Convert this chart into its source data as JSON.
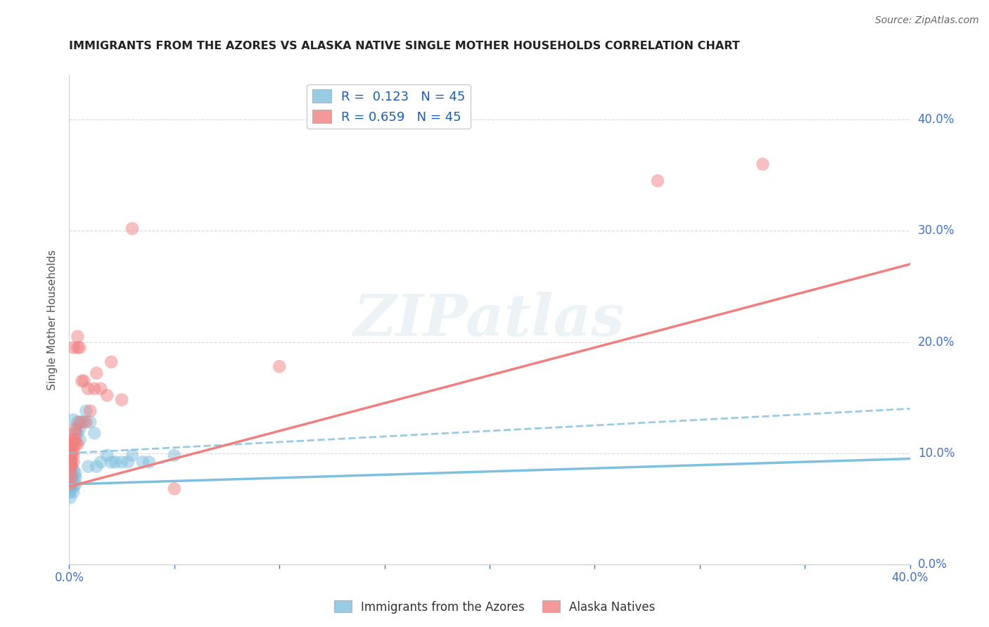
{
  "title": "IMMIGRANTS FROM THE AZORES VS ALASKA NATIVE SINGLE MOTHER HOUSEHOLDS CORRELATION CHART",
  "source": "Source: ZipAtlas.com",
  "ylabel": "Single Mother Households",
  "xlim": [
    0.0,
    0.4
  ],
  "ylim": [
    0.0,
    0.44
  ],
  "xtick_vals": [
    0.0,
    0.05,
    0.1,
    0.15,
    0.2,
    0.25,
    0.3,
    0.35,
    0.4
  ],
  "xtick_labels": [
    "0.0%",
    "",
    "",
    "",
    "",
    "",
    "",
    "",
    "40.0%"
  ],
  "ytick_vals": [
    0.0,
    0.1,
    0.2,
    0.3,
    0.4
  ],
  "ytick_labels": [
    "0.0%",
    "10.0%",
    "20.0%",
    "30.0%",
    "40.0%"
  ],
  "R_blue": 0.123,
  "R_pink": 0.659,
  "N": 45,
  "blue_color": "#7fbfdf",
  "pink_color": "#f08080",
  "blue_scatter": [
    [
      0.0005,
      0.06
    ],
    [
      0.0005,
      0.07
    ],
    [
      0.0005,
      0.075
    ],
    [
      0.0005,
      0.08
    ],
    [
      0.0005,
      0.085
    ],
    [
      0.0005,
      0.09
    ],
    [
      0.0005,
      0.095
    ],
    [
      0.0005,
      0.065
    ],
    [
      0.001,
      0.068
    ],
    [
      0.001,
      0.072
    ],
    [
      0.001,
      0.078
    ],
    [
      0.001,
      0.082
    ],
    [
      0.001,
      0.088
    ],
    [
      0.001,
      0.092
    ],
    [
      0.002,
      0.065
    ],
    [
      0.002,
      0.07
    ],
    [
      0.002,
      0.075
    ],
    [
      0.002,
      0.08
    ],
    [
      0.002,
      0.085
    ],
    [
      0.002,
      0.13
    ],
    [
      0.003,
      0.072
    ],
    [
      0.003,
      0.078
    ],
    [
      0.003,
      0.082
    ],
    [
      0.003,
      0.12
    ],
    [
      0.004,
      0.118
    ],
    [
      0.004,
      0.128
    ],
    [
      0.005,
      0.112
    ],
    [
      0.005,
      0.122
    ],
    [
      0.006,
      0.128
    ],
    [
      0.007,
      0.128
    ],
    [
      0.008,
      0.138
    ],
    [
      0.009,
      0.088
    ],
    [
      0.01,
      0.128
    ],
    [
      0.012,
      0.118
    ],
    [
      0.013,
      0.088
    ],
    [
      0.015,
      0.092
    ],
    [
      0.018,
      0.098
    ],
    [
      0.02,
      0.092
    ],
    [
      0.022,
      0.092
    ],
    [
      0.025,
      0.092
    ],
    [
      0.028,
      0.092
    ],
    [
      0.03,
      0.098
    ],
    [
      0.035,
      0.092
    ],
    [
      0.038,
      0.092
    ],
    [
      0.05,
      0.098
    ]
  ],
  "pink_scatter": [
    [
      0.0005,
      0.072
    ],
    [
      0.0005,
      0.082
    ],
    [
      0.0005,
      0.088
    ],
    [
      0.0005,
      0.092
    ],
    [
      0.0005,
      0.098
    ],
    [
      0.0005,
      0.102
    ],
    [
      0.0005,
      0.108
    ],
    [
      0.001,
      0.078
    ],
    [
      0.001,
      0.088
    ],
    [
      0.001,
      0.092
    ],
    [
      0.001,
      0.098
    ],
    [
      0.001,
      0.102
    ],
    [
      0.001,
      0.108
    ],
    [
      0.001,
      0.112
    ],
    [
      0.002,
      0.092
    ],
    [
      0.002,
      0.098
    ],
    [
      0.002,
      0.102
    ],
    [
      0.002,
      0.108
    ],
    [
      0.002,
      0.112
    ],
    [
      0.002,
      0.195
    ],
    [
      0.003,
      0.108
    ],
    [
      0.003,
      0.112
    ],
    [
      0.003,
      0.118
    ],
    [
      0.003,
      0.122
    ],
    [
      0.004,
      0.108
    ],
    [
      0.004,
      0.195
    ],
    [
      0.004,
      0.205
    ],
    [
      0.005,
      0.128
    ],
    [
      0.005,
      0.195
    ],
    [
      0.006,
      0.165
    ],
    [
      0.007,
      0.165
    ],
    [
      0.008,
      0.128
    ],
    [
      0.009,
      0.158
    ],
    [
      0.01,
      0.138
    ],
    [
      0.012,
      0.158
    ],
    [
      0.013,
      0.172
    ],
    [
      0.015,
      0.158
    ],
    [
      0.018,
      0.152
    ],
    [
      0.02,
      0.182
    ],
    [
      0.025,
      0.148
    ],
    [
      0.03,
      0.302
    ],
    [
      0.05,
      0.068
    ],
    [
      0.1,
      0.178
    ],
    [
      0.28,
      0.345
    ],
    [
      0.33,
      0.36
    ]
  ],
  "watermark": "ZIPatlas",
  "legend_blue_label": "Immigrants from the Azores",
  "legend_pink_label": "Alaska Natives",
  "background_color": "#ffffff",
  "grid_color": "#d0d0d0",
  "title_color": "#222222",
  "tick_color": "#4472c4"
}
